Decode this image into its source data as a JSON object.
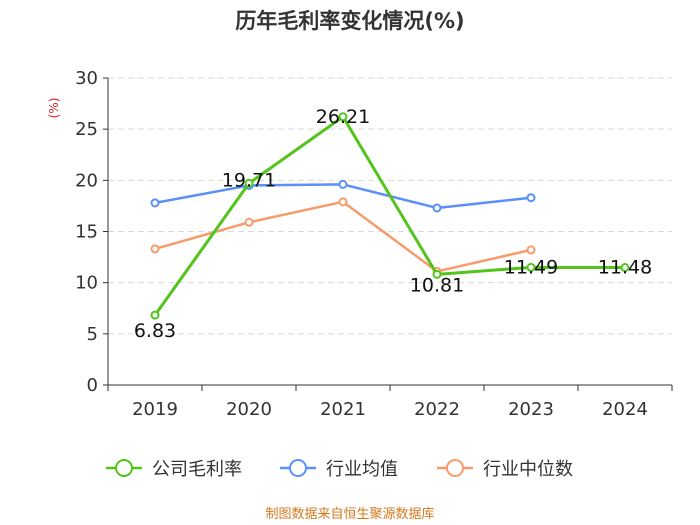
{
  "chart_data": {
    "type": "line",
    "title": "历年毛利率变化情况(%)",
    "ylabel": "(%)",
    "xlabel": "",
    "ylim": [
      0,
      30
    ],
    "yticks": [
      0,
      5,
      10,
      15,
      20,
      25,
      30
    ],
    "categories": [
      "2019",
      "2020",
      "2021",
      "2022",
      "2023",
      "2024"
    ],
    "series": [
      {
        "name": "公司毛利率",
        "color": "#52c41a",
        "values": [
          6.83,
          19.71,
          26.21,
          10.81,
          11.49,
          11.48
        ],
        "labels": [
          "6.83",
          "19.71",
          "26.21",
          "10.81",
          "11.49",
          "11.48"
        ]
      },
      {
        "name": "行业均值",
        "color": "#5b8ff9",
        "values": [
          17.8,
          19.5,
          19.6,
          17.3,
          18.3,
          null
        ]
      },
      {
        "name": "行业中位数",
        "color": "#f79b6b",
        "values": [
          13.3,
          15.9,
          17.9,
          11.1,
          13.2,
          null
        ]
      }
    ],
    "grid": true,
    "legend": "bottom"
  },
  "source": "制图数据来自恒生聚源数据库"
}
